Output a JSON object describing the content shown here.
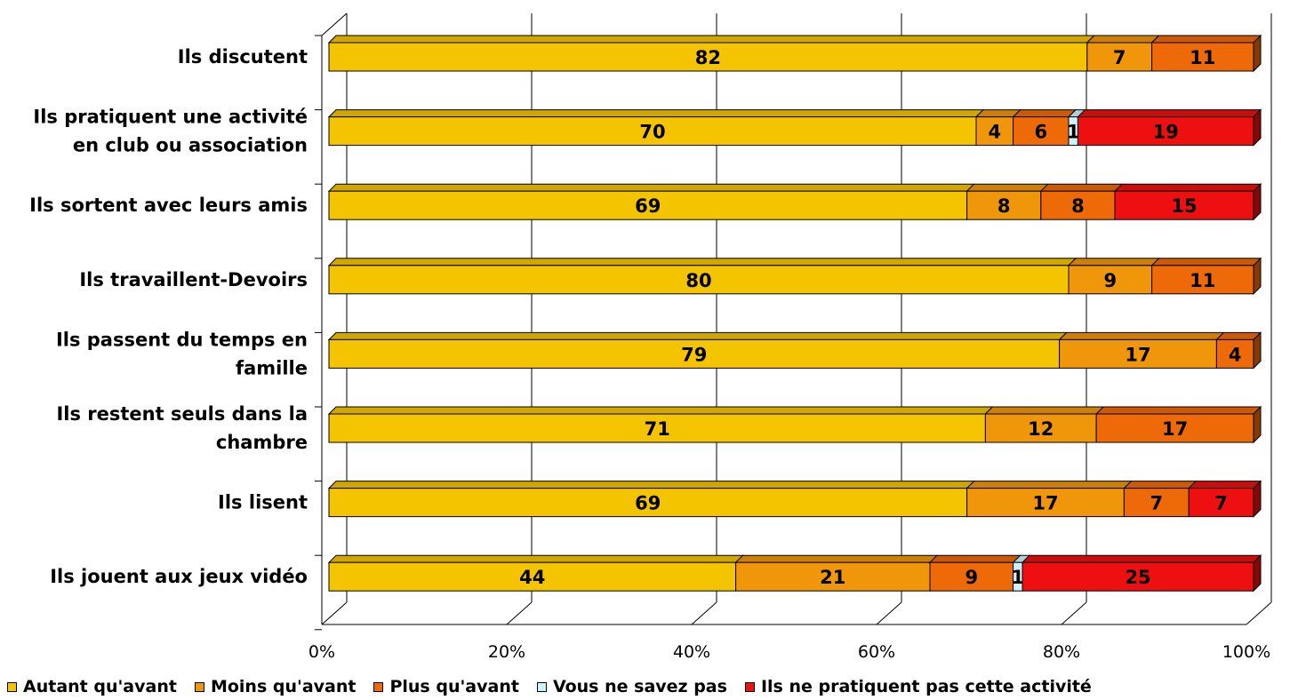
{
  "chart_data": {
    "type": "bar",
    "orientation": "horizontal",
    "stacked": "percent",
    "three_d": true,
    "categories": [
      "Ils discutent",
      "Ils pratiquent une activité en club ou association",
      "Ils sortent avec leurs amis",
      "Ils travaillent-Devoirs",
      "Ils passent du temps en famille",
      "Ils restent seuls dans la chambre",
      "Ils lisent",
      "Ils jouent aux jeux vidéo"
    ],
    "series": [
      {
        "name": "Autant qu'avant",
        "color": "#F5C400",
        "values": [
          82,
          70,
          69,
          80,
          79,
          71,
          69,
          44
        ]
      },
      {
        "name": "Moins qu'avant",
        "color": "#F0960A",
        "values": [
          7,
          4,
          8,
          9,
          17,
          12,
          17,
          21
        ]
      },
      {
        "name": "Plus qu'avant",
        "color": "#EE6A08",
        "values": [
          11,
          6,
          8,
          11,
          4,
          17,
          7,
          9
        ]
      },
      {
        "name": "Vous ne savez pas",
        "color": "#CCF4FF",
        "values": [
          0,
          1,
          0,
          0,
          0,
          0,
          0,
          1
        ]
      },
      {
        "name": "Ils ne pratiquent pas cette activité",
        "color": "#EE1010",
        "values": [
          0,
          19,
          15,
          0,
          0,
          0,
          7,
          25
        ]
      }
    ],
    "xlim": [
      0,
      100
    ],
    "xticks": [
      "0%",
      "20%",
      "40%",
      "60%",
      "80%",
      "100%"
    ],
    "grid": true,
    "legend_position": "bottom"
  }
}
